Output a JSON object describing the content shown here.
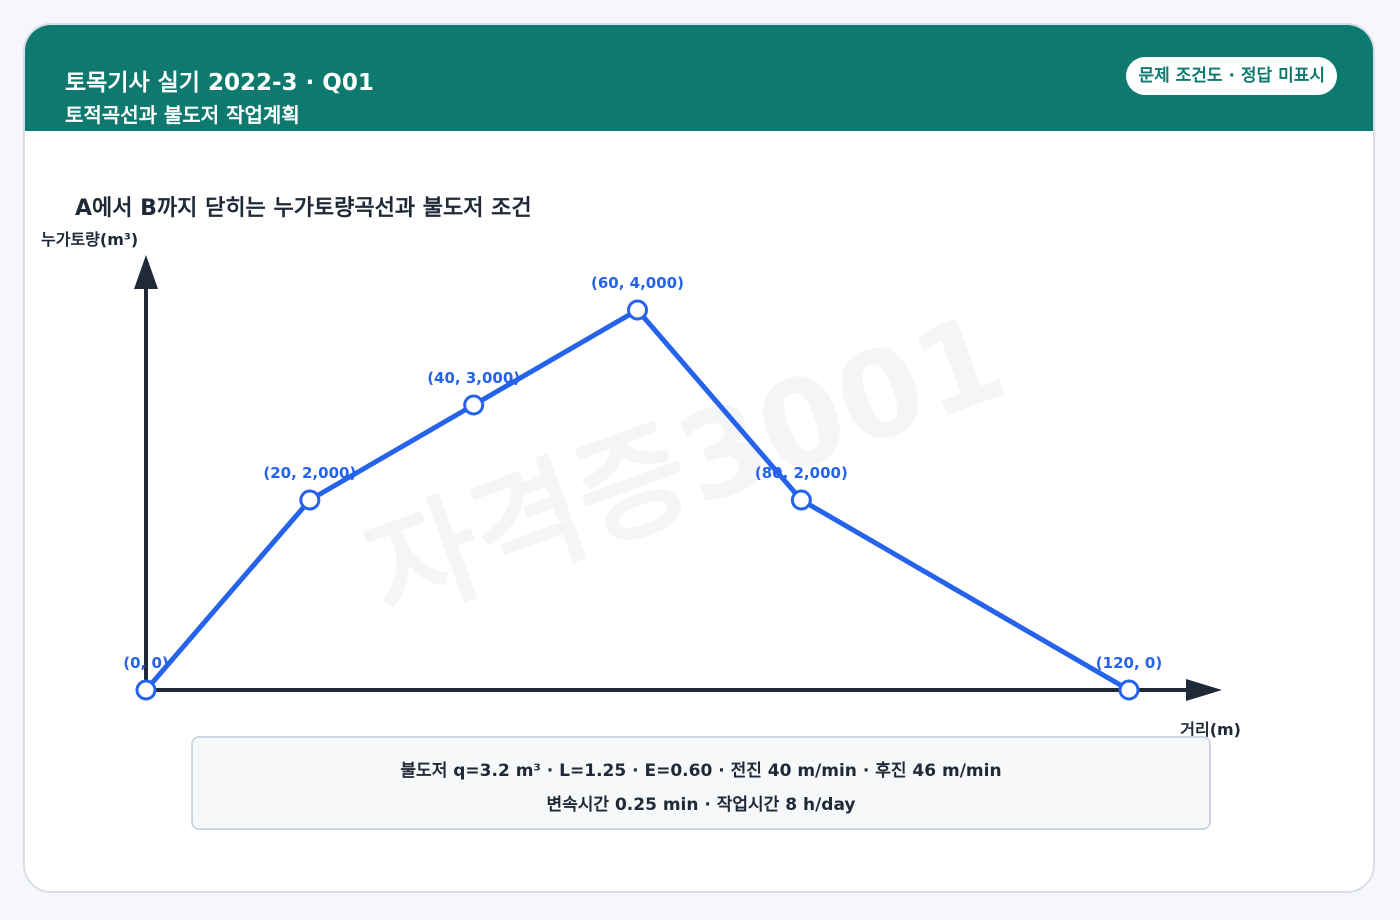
{
  "header": {
    "title": "토목기사 실기 2022-3 · Q01",
    "subtitle": "토적곡선과 불도저 작업계획",
    "badge": "문제 조건도 · 정답 미표시"
  },
  "watermark": "자격증3001",
  "conditions": {
    "line1": "불도저 q=3.2 m³ · L=1.25 · E=0.60 · 전진 40 m/min · 후진 46 m/min",
    "line2": "변속시간 0.25 min · 작업시간 8 h/day"
  },
  "colors": {
    "header": "#0e7a6f",
    "line": "#2563eb",
    "axis": "#1f2937"
  },
  "chart_data": {
    "type": "line",
    "title": "A에서 B까지 닫히는 누가토량곡선과 불도저 조건",
    "xlabel": "거리(m)",
    "ylabel": "누가토량(m³)",
    "xlim": [
      0,
      132
    ],
    "ylim": [
      0,
      4800
    ],
    "grid": false,
    "x": [
      0,
      20,
      40,
      60,
      80,
      120
    ],
    "y": [
      0,
      2000,
      3000,
      4000,
      2000,
      0
    ],
    "point_labels": [
      "(0, 0)",
      "(20, 2,000)",
      "(40, 3,000)",
      "(60, 4,000)",
      "(80, 2,000)",
      "(120, 0)"
    ]
  }
}
